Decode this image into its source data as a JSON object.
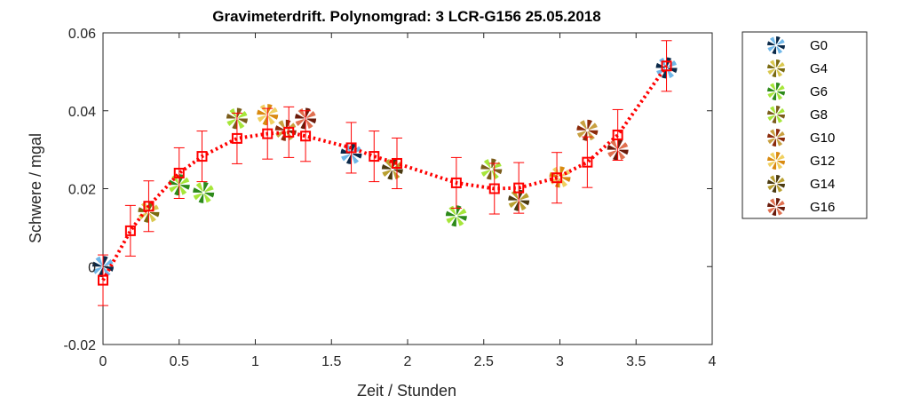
{
  "chart_data": {
    "type": "scatter",
    "title": "Gravimeterdrift. Polynomgrad: 3  LCR-G156  25.05.2018",
    "xlabel": "Zeit / Stunden",
    "ylabel": "Schwere / mgal",
    "xlim": [
      0,
      4
    ],
    "ylim": [
      -0.02,
      0.06
    ],
    "xticks": [
      0,
      0.5,
      1,
      1.5,
      2,
      2.5,
      3,
      3.5,
      4
    ],
    "xtick_labels": [
      "0",
      "0.5",
      "1",
      "1.5",
      "2",
      "2.5",
      "3",
      "3.5",
      "4"
    ],
    "yticks": [
      -0.02,
      0,
      0.02,
      0.04,
      0.06
    ],
    "ytick_labels": [
      "-0.02",
      "0",
      "0.02",
      "0.04",
      "0.06"
    ],
    "grid": false,
    "legend_position": "outside-right",
    "series": [
      {
        "name": "G0",
        "colors": [
          "#0b2a4a",
          "#6fb7e8"
        ],
        "x": [
          0.0,
          1.63,
          3.7
        ],
        "y": [
          0.0,
          0.029,
          0.051
        ]
      },
      {
        "name": "G4",
        "colors": [
          "#7a6a10",
          "#d9c850"
        ],
        "x": [
          0.3
        ],
        "y": [
          0.014
        ]
      },
      {
        "name": "G6",
        "colors": [
          "#2d8a1a",
          "#a6e63a"
        ],
        "x": [
          0.5,
          0.66,
          2.32
        ],
        "y": [
          0.021,
          0.019,
          0.013
        ]
      },
      {
        "name": "G8",
        "colors": [
          "#7a5c1a",
          "#a6e63a"
        ],
        "x": [
          0.88,
          2.55
        ],
        "y": [
          0.038,
          0.025
        ]
      },
      {
        "name": "G10",
        "colors": [
          "#8b2a0a",
          "#c8a040"
        ],
        "x": [
          1.2,
          3.18
        ],
        "y": [
          0.035,
          0.035
        ]
      },
      {
        "name": "G12",
        "colors": [
          "#d98a10",
          "#f0d060"
        ],
        "x": [
          1.08,
          3.0
        ],
        "y": [
          0.039,
          0.023
        ]
      },
      {
        "name": "G14",
        "colors": [
          "#4a3a10",
          "#b9a030"
        ],
        "x": [
          1.9,
          2.73
        ],
        "y": [
          0.025,
          0.017
        ]
      },
      {
        "name": "G16",
        "colors": [
          "#6a1a0a",
          "#e07050"
        ],
        "x": [
          1.33,
          3.38
        ],
        "y": [
          0.038,
          0.03
        ]
      }
    ],
    "fit": {
      "color": "#ff0000",
      "x": [
        0.0,
        0.18,
        0.3,
        0.5,
        0.65,
        0.88,
        1.08,
        1.22,
        1.33,
        1.63,
        1.78,
        1.93,
        2.32,
        2.57,
        2.73,
        2.98,
        3.18,
        3.38,
        3.7
      ],
      "y": [
        -0.0035,
        0.0092,
        0.0155,
        0.024,
        0.0283,
        0.0329,
        0.0341,
        0.0345,
        0.0335,
        0.0305,
        0.0283,
        0.0265,
        0.0215,
        0.02,
        0.0202,
        0.0228,
        0.0268,
        0.0338,
        0.0515
      ],
      "error": 0.0065
    }
  }
}
